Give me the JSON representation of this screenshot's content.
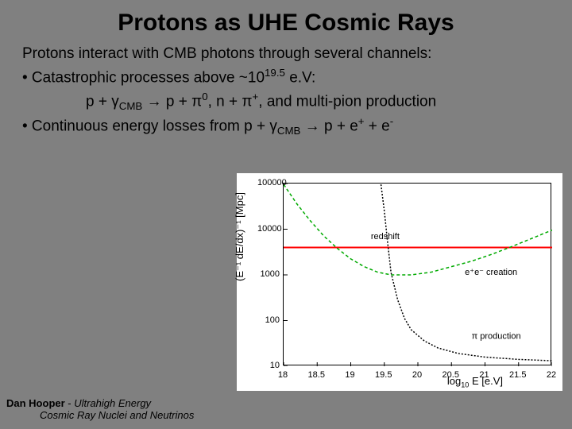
{
  "title": "Protons as UHE Cosmic Rays",
  "content": {
    "line1": "Protons interact with CMB photons through several channels:",
    "bullet1_a": "• Catastrophic processes above ~10",
    "bullet1_exp": "19.5",
    "bullet1_b": " e.V:",
    "reaction_a": "p + ",
    "gamma": "γ",
    "cmb": "CMB",
    "arrow": " → ",
    "reaction_b": "p + ",
    "pi": "π",
    "zero": "0",
    "reaction_c": ", n + ",
    "plus": "+",
    "reaction_d": ", and multi-pion production",
    "bullet2_a": "• Continuous energy losses from p + ",
    "bullet2_b": " p + e",
    "bullet2_c": " + e",
    "minus": "-"
  },
  "chart": {
    "type": "line",
    "background_color": "#ffffff",
    "ylabel": "(E⁻¹ dE/dx)⁻¹ [Mpc]",
    "xlabel_a": "log",
    "xlabel_sub": "10",
    "xlabel_b": " E [e.V]",
    "xticks": [
      "18",
      "18.5",
      "19",
      "19.5",
      "20",
      "20.5",
      "21",
      "21.5",
      "22"
    ],
    "yticks": [
      "100000",
      "10000",
      "1000",
      "100",
      "10"
    ],
    "xlim": [
      18,
      22
    ],
    "ylim_log": [
      1,
      5
    ],
    "redshift_line": {
      "color": "#ff0000",
      "y_log": 3.6,
      "width": 2,
      "label": "redshift"
    },
    "ee_creation": {
      "color": "#00aa00",
      "dash": "4,3",
      "width": 1.5,
      "label": "e⁺e⁻ creation",
      "points": [
        {
          "x": 18.0,
          "y_log": 4.98
        },
        {
          "x": 18.2,
          "y_log": 4.55
        },
        {
          "x": 18.4,
          "y_log": 4.18
        },
        {
          "x": 18.6,
          "y_log": 3.85
        },
        {
          "x": 18.8,
          "y_log": 3.58
        },
        {
          "x": 19.0,
          "y_log": 3.35
        },
        {
          "x": 19.2,
          "y_log": 3.18
        },
        {
          "x": 19.4,
          "y_log": 3.06
        },
        {
          "x": 19.6,
          "y_log": 3.0
        },
        {
          "x": 19.9,
          "y_log": 3.0
        },
        {
          "x": 20.2,
          "y_log": 3.06
        },
        {
          "x": 20.5,
          "y_log": 3.18
        },
        {
          "x": 20.8,
          "y_log": 3.3
        },
        {
          "x": 21.1,
          "y_log": 3.45
        },
        {
          "x": 21.4,
          "y_log": 3.62
        },
        {
          "x": 21.7,
          "y_log": 3.8
        },
        {
          "x": 22.0,
          "y_log": 3.98
        }
      ]
    },
    "pi_production": {
      "color": "#000000",
      "dash": "2,2",
      "width": 1.5,
      "label": "π production",
      "points": [
        {
          "x": 19.45,
          "y_log": 4.98
        },
        {
          "x": 19.5,
          "y_log": 4.4
        },
        {
          "x": 19.55,
          "y_log": 3.7
        },
        {
          "x": 19.6,
          "y_log": 3.05
        },
        {
          "x": 19.7,
          "y_log": 2.45
        },
        {
          "x": 19.8,
          "y_log": 2.05
        },
        {
          "x": 19.9,
          "y_log": 1.8
        },
        {
          "x": 20.1,
          "y_log": 1.55
        },
        {
          "x": 20.3,
          "y_log": 1.4
        },
        {
          "x": 20.6,
          "y_log": 1.28
        },
        {
          "x": 21.0,
          "y_log": 1.2
        },
        {
          "x": 21.5,
          "y_log": 1.15
        },
        {
          "x": 22.0,
          "y_log": 1.12
        }
      ]
    },
    "annot_redshift": {
      "x": 19.3,
      "y_log": 3.78
    },
    "annot_ee": {
      "x": 20.7,
      "y_log": 3.0
    },
    "annot_pi": {
      "x": 20.8,
      "y_log": 1.6
    }
  },
  "footer": {
    "author": "Dan Hooper",
    "sep": " - ",
    "sub1": "Ultrahigh Energy",
    "sub2": "Cosmic Ray Nuclei and Neutrinos"
  }
}
